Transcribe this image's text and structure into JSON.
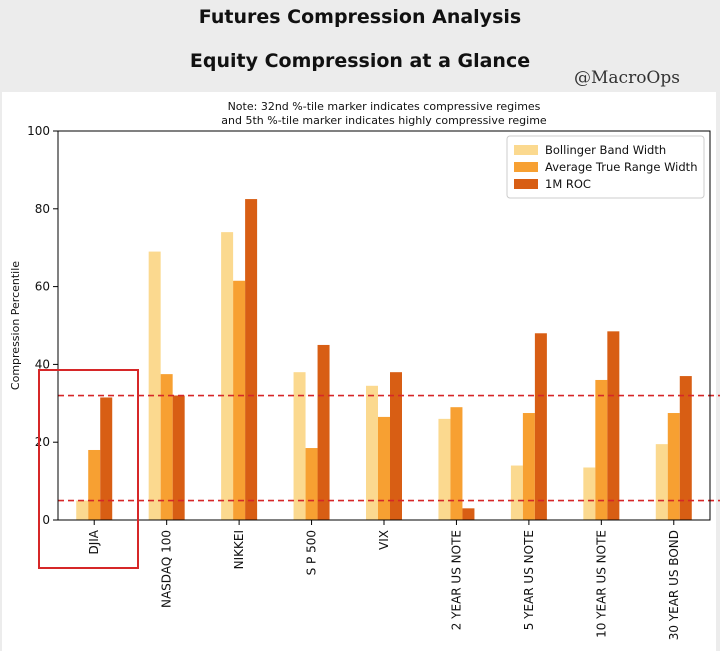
{
  "header": {
    "title": "Futures Compression Analysis",
    "subtitle": "Equity Compression at a Glance",
    "watermark": "@MacroOps"
  },
  "chart_data": {
    "type": "bar",
    "note_line1": "Note: 32nd %-tile marker indicates compressive regimes",
    "note_line2": "and 5th %-tile marker indicates highly compressive regime",
    "ylabel": "Compression Percentile",
    "xlabel": "",
    "ylim": [
      0,
      100
    ],
    "yticks": [
      0,
      20,
      40,
      60,
      80,
      100
    ],
    "categories": [
      "DJIA",
      "NASDAQ 100",
      "NIKKEI",
      "S P 500",
      "VIX",
      "2 YEAR US NOTE",
      "5 YEAR US NOTE",
      "10 YEAR US NOTE",
      "30 YEAR US BOND"
    ],
    "series": [
      {
        "name": "Bollinger Band Width",
        "color": "#fbd98f",
        "values": [
          5,
          69,
          74,
          38,
          34.5,
          26,
          14,
          13.5,
          19.5
        ]
      },
      {
        "name": "Average True Range Width",
        "color": "#f7a032",
        "values": [
          18,
          37.5,
          61.5,
          18.5,
          26.5,
          29,
          27.5,
          36,
          27.5
        ]
      },
      {
        "name": "1M ROC",
        "color": "#d85e14",
        "values": [
          31.5,
          32,
          82.5,
          45,
          38,
          3,
          48,
          48.5,
          37
        ]
      }
    ],
    "reference_lines": [
      {
        "value": 32,
        "color": "#d62728",
        "style": "dashed"
      },
      {
        "value": 5,
        "color": "#d62728",
        "style": "dashed"
      }
    ],
    "highlight": {
      "category": "DJIA",
      "color": "#d62728"
    },
    "legend_position": "top-right",
    "grid": false
  }
}
